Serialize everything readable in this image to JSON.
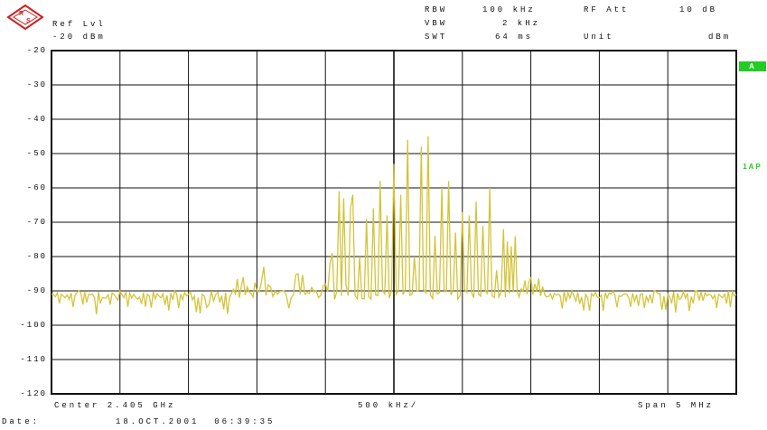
{
  "logo": {
    "text": "R&S"
  },
  "header": {
    "ref_lvl_label": "Ref Lvl",
    "ref_lvl_value": "-20 dBm",
    "rbw_label": "RBW",
    "rbw_value": "100 kHz",
    "vbw_label": "VBW",
    "vbw_value": "2 kHz",
    "swt_label": "SWT",
    "swt_value": "64 ms",
    "rf_att_label": "RF Att",
    "rf_att_value": "10 dB",
    "unit_label": "Unit",
    "unit_value": "dBm"
  },
  "markers": {
    "trace_a": "A",
    "trace_a_color": "#22cc22",
    "detector": "1AP",
    "detector_color": "#22cc22"
  },
  "footer": {
    "center": "Center 2.405 GHz",
    "div": "500 kHz/",
    "span": "Span 5 MHz",
    "date_label": "Date:",
    "date_value": "18.OCT.2001  06:39:35"
  },
  "colors": {
    "trace": "#d4c43a",
    "grid": "#111111"
  },
  "chart_data": {
    "type": "line",
    "title": "",
    "xlabel": "",
    "ylabel": "",
    "y_unit": "dBm",
    "ylim": [
      -120,
      -20
    ],
    "yticks": [
      "-20",
      "-30",
      "-40",
      "-50",
      "-60",
      "-70",
      "-80",
      "-90",
      "-100",
      "-110",
      "-120"
    ],
    "xlim": [
      2402.5,
      2407.5
    ],
    "x_unit": "MHz",
    "grid": true,
    "series": [
      {
        "x": [
          2402.5,
          2402.6,
          2402.7,
          2402.8,
          2402.9,
          2403.0,
          2403.1,
          2403.2,
          2403.3,
          2403.4,
          2403.5,
          2403.6,
          2403.65,
          2403.7,
          2403.8,
          2403.9,
          2404.0,
          2404.05,
          2404.1,
          2404.15,
          2404.2,
          2404.25,
          2404.3,
          2404.35,
          2404.4,
          2404.45,
          2404.5,
          2404.55,
          2404.6,
          2404.65,
          2404.7,
          2404.75,
          2404.8,
          2404.85,
          2404.9,
          2404.95,
          2405.0,
          2405.05,
          2405.1,
          2405.15,
          2405.2,
          2405.25,
          2405.3,
          2405.35,
          2405.4,
          2405.45,
          2405.5,
          2405.55,
          2405.6,
          2405.65,
          2405.7,
          2405.75,
          2405.8,
          2405.9,
          2406.0,
          2406.1,
          2406.2,
          2406.3,
          2406.4,
          2406.5,
          2406.6,
          2406.7,
          2406.8,
          2406.9,
          2407.0,
          2407.1,
          2407.2,
          2407.3,
          2407.4,
          2407.5
        ],
        "y": [
          -91,
          -92,
          -90,
          -91,
          -92,
          -90,
          -91,
          -91,
          -92,
          -90,
          -91,
          -91,
          -94,
          -91,
          -92,
          -86,
          -90,
          -83,
          -89,
          -91,
          -90,
          -92,
          -85,
          -91,
          -89,
          -92,
          -88,
          -79,
          -61,
          -88,
          -62,
          -80,
          -69,
          -66,
          -58,
          -68,
          -53,
          -62,
          -46,
          -80,
          -48,
          -45,
          -74,
          -60,
          -58,
          -73,
          -67,
          -68,
          -64,
          -71,
          -60,
          -84,
          -72,
          -90,
          -86,
          -91,
          -91,
          -90,
          -91,
          -92,
          -90,
          -91,
          -91,
          -90,
          -91,
          -92,
          -90,
          -91,
          -92,
          -91
        ]
      }
    ]
  }
}
